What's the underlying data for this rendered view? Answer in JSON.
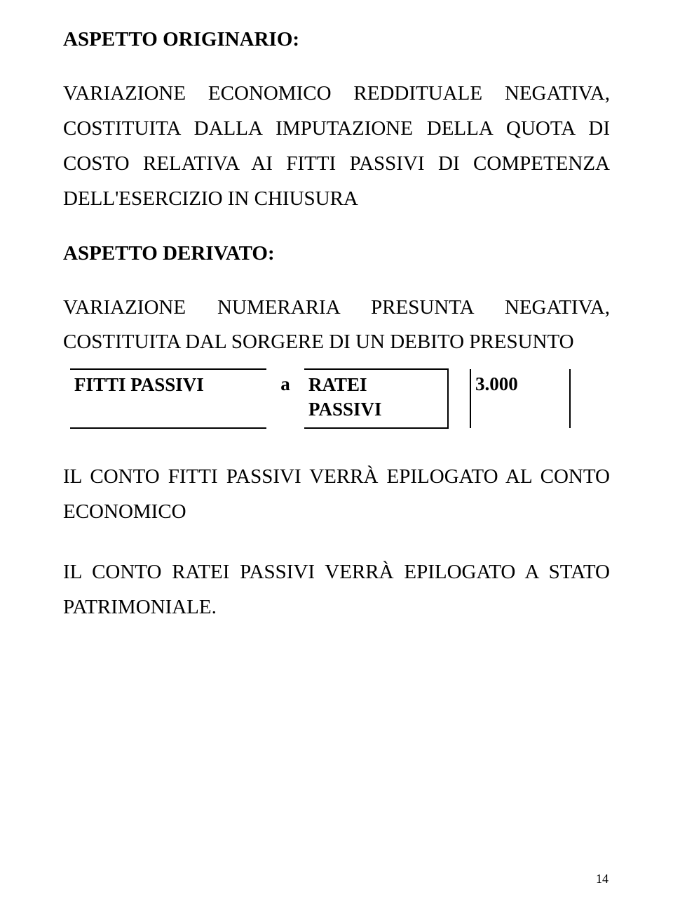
{
  "heading1": "ASPETTO ORIGINARIO:",
  "para1": "VARIAZIONE ECONOMICO REDDITUALE NEGATIVA, COSTITUITA DALLA IMPUTAZIONE DELLA QUOTA DI COSTO RELATIVA AI FITTI PASSIVI DI COMPETENZA DELL'ESERCIZIO IN CHIUSURA",
  "heading2": "ASPETTO DERIVATO:",
  "para2": "VARIAZIONE NUMERARIA PRESUNTA NEGATIVA, COSTITUITA DAL SORGERE DI UN DEBITO PRESUNTO",
  "entry": {
    "desc": "FITTI PASSIVI",
    "a": "a",
    "acct_line1": "RATEI",
    "acct_line2": "PASSIVI",
    "amount": "3.000"
  },
  "para3": "IL CONTO FITTI PASSIVI VERRÀ EPILOGATO AL CONTO ECONOMICO",
  "para4": "IL CONTO RATEI PASSIVI VERRÀ EPILOGATO A STATO PATRIMONIALE.",
  "page_number": "14"
}
